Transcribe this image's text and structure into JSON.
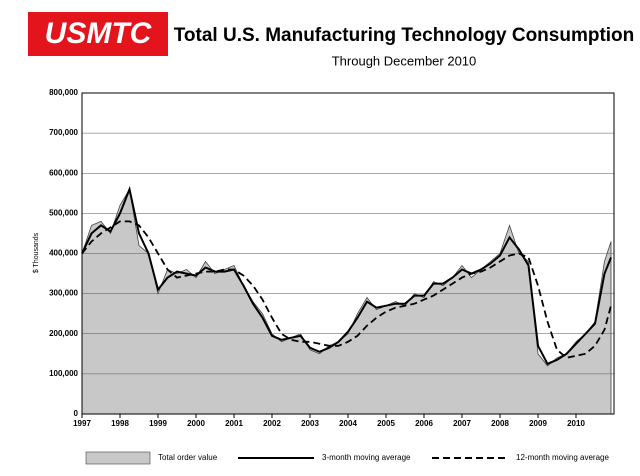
{
  "logo": "USMTC",
  "chart_data": {
    "type": "line",
    "title": "Total U.S. Manufacturing Technology Consumption",
    "subtitle": "Through December 2010",
    "y_label": "$ Thousands",
    "x": [
      1997,
      1997.25,
      1997.5,
      1997.75,
      1998,
      1998.25,
      1998.5,
      1998.75,
      1999,
      1999.25,
      1999.5,
      1999.75,
      2000,
      2000.25,
      2000.5,
      2000.75,
      2001,
      2001.25,
      2001.5,
      2001.75,
      2002,
      2002.25,
      2002.5,
      2002.75,
      2003,
      2003.25,
      2003.5,
      2003.75,
      2004,
      2004.25,
      2004.5,
      2004.75,
      2005,
      2005.25,
      2005.5,
      2005.75,
      2006,
      2006.25,
      2006.5,
      2006.75,
      2007,
      2007.25,
      2007.5,
      2007.75,
      2008,
      2008.25,
      2008.5,
      2008.75,
      2009,
      2009.25,
      2009.5,
      2009.75,
      2010,
      2010.25,
      2010.5,
      2010.75,
      2010.92
    ],
    "series": [
      {
        "name": "Total order value",
        "color": "#c8c8c8",
        "kind": "area",
        "values": [
          400000,
          470000,
          480000,
          450000,
          520000,
          560000,
          420000,
          400000,
          300000,
          360000,
          350000,
          360000,
          340000,
          380000,
          350000,
          360000,
          370000,
          320000,
          280000,
          250000,
          200000,
          180000,
          190000,
          200000,
          160000,
          150000,
          170000,
          180000,
          200000,
          250000,
          290000,
          260000,
          270000,
          280000,
          270000,
          300000,
          290000,
          330000,
          320000,
          340000,
          370000,
          340000,
          360000,
          380000,
          400000,
          470000,
          400000,
          380000,
          150000,
          120000,
          140000,
          150000,
          180000,
          200000,
          230000,
          380000,
          430000
        ]
      },
      {
        "name": "3-month moving average",
        "color": "#000000",
        "kind": "line",
        "values": [
          400000,
          450000,
          470000,
          455000,
          500000,
          560000,
          450000,
          400000,
          310000,
          340000,
          355000,
          350000,
          345000,
          365000,
          355000,
          355000,
          360000,
          320000,
          275000,
          240000,
          195000,
          185000,
          190000,
          195000,
          165000,
          155000,
          165000,
          180000,
          205000,
          240000,
          280000,
          265000,
          270000,
          275000,
          275000,
          295000,
          295000,
          325000,
          325000,
          340000,
          360000,
          350000,
          360000,
          375000,
          395000,
          440000,
          410000,
          370000,
          170000,
          125000,
          135000,
          150000,
          175000,
          200000,
          225000,
          350000,
          390000
        ]
      },
      {
        "name": "12-month moving average",
        "color": "#000000",
        "kind": "dashed",
        "values": [
          400000,
          430000,
          450000,
          465000,
          480000,
          480000,
          470000,
          440000,
          400000,
          360000,
          340000,
          345000,
          350000,
          355000,
          355000,
          360000,
          360000,
          345000,
          320000,
          285000,
          240000,
          200000,
          185000,
          180000,
          180000,
          175000,
          170000,
          170000,
          180000,
          195000,
          220000,
          240000,
          255000,
          265000,
          270000,
          275000,
          285000,
          295000,
          310000,
          325000,
          340000,
          350000,
          355000,
          365000,
          380000,
          395000,
          400000,
          390000,
          320000,
          230000,
          160000,
          140000,
          145000,
          150000,
          170000,
          210000,
          270000
        ]
      }
    ],
    "xlim": [
      1997,
      2011
    ],
    "ylim": [
      0,
      800000
    ],
    "xticks": [
      1997,
      1998,
      1999,
      2000,
      2001,
      2002,
      2003,
      2004,
      2005,
      2006,
      2007,
      2008,
      2009,
      2010
    ],
    "yticks": [
      0,
      {
        "value": 100000,
        "label": "100,000"
      },
      {
        "value": 200000,
        "label": "200,000"
      },
      {
        "value": 300000,
        "label": "300,000"
      },
      {
        "value": 400000,
        "label": "400,000"
      },
      {
        "value": 500000,
        "label": "500,000"
      },
      {
        "value": 600000,
        "label": "600,000"
      },
      {
        "value": 700000,
        "label": "700,000"
      },
      {
        "value": 800000,
        "label": "800,000"
      }
    ],
    "grid": true
  }
}
